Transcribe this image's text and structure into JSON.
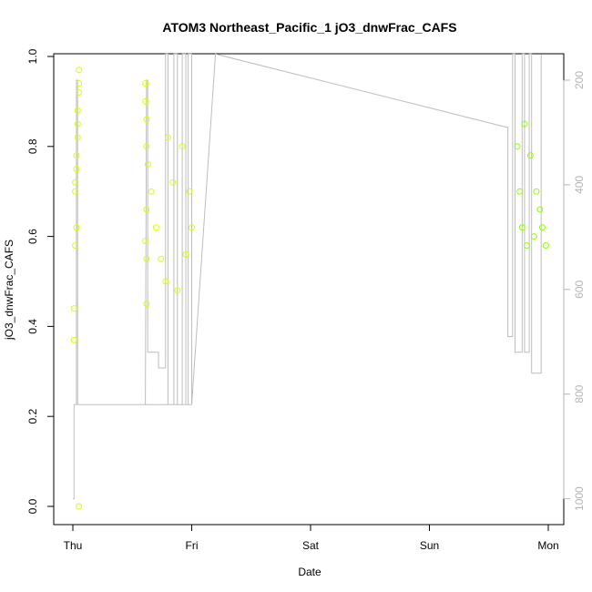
{
  "chart_data": {
    "type": "scatter",
    "title": "ATOM3 Northeast_Pacific_1 jO3_dnwFrac_CAFS",
    "xlabel": "Date",
    "ylabel": "jO3_dnwFrac_CAFS",
    "x_ticks": [
      "Thu",
      "Fri",
      "Sat",
      "Sun",
      "Mon"
    ],
    "ylim": [
      0,
      1
    ],
    "y_ticks": [
      "0.0",
      "0.2",
      "0.4",
      "0.6",
      "0.8",
      "1.0"
    ],
    "y2_ticks": [
      "200",
      "400",
      "600",
      "800",
      "1000"
    ],
    "y2_range_inverted": [
      1100,
      150
    ],
    "grid": false,
    "colors": {
      "early_points": "#d9ff00",
      "late_points": "#8cff00",
      "altitude_line": "#bdbdbd",
      "axis": "#000000",
      "right_axis": "#b4b4b4"
    },
    "point_series": [
      {
        "x_day": 0.02,
        "y": 0.7
      },
      {
        "x_day": 0.02,
        "y": 0.72
      },
      {
        "x_day": 0.03,
        "y": 0.75
      },
      {
        "x_day": 0.03,
        "y": 0.78
      },
      {
        "x_day": 0.04,
        "y": 0.82
      },
      {
        "x_day": 0.04,
        "y": 0.85
      },
      {
        "x_day": 0.04,
        "y": 0.88
      },
      {
        "x_day": 0.05,
        "y": 0.92
      },
      {
        "x_day": 0.05,
        "y": 0.94
      },
      {
        "x_day": 0.05,
        "y": 0.97
      },
      {
        "x_day": 0.03,
        "y": 0.62
      },
      {
        "x_day": 0.02,
        "y": 0.58
      },
      {
        "x_day": 0.01,
        "y": 0.44
      },
      {
        "x_day": 0.01,
        "y": 0.37
      },
      {
        "x_day": 0.05,
        "y": 0.0
      },
      {
        "x_day": 0.61,
        "y": 0.94
      },
      {
        "x_day": 0.61,
        "y": 0.9
      },
      {
        "x_day": 0.62,
        "y": 0.86
      },
      {
        "x_day": 0.62,
        "y": 0.8
      },
      {
        "x_day": 0.63,
        "y": 0.76
      },
      {
        "x_day": 0.62,
        "y": 0.66
      },
      {
        "x_day": 0.61,
        "y": 0.59
      },
      {
        "x_day": 0.62,
        "y": 0.55
      },
      {
        "x_day": 0.62,
        "y": 0.45
      },
      {
        "x_day": 0.66,
        "y": 0.7
      },
      {
        "x_day": 0.7,
        "y": 0.62
      },
      {
        "x_day": 0.74,
        "y": 0.55
      },
      {
        "x_day": 0.78,
        "y": 0.5
      },
      {
        "x_day": 0.8,
        "y": 0.82
      },
      {
        "x_day": 0.84,
        "y": 0.72
      },
      {
        "x_day": 0.88,
        "y": 0.48
      },
      {
        "x_day": 0.92,
        "y": 0.8
      },
      {
        "x_day": 0.95,
        "y": 0.56
      },
      {
        "x_day": 0.98,
        "y": 0.7
      },
      {
        "x_day": 1.0,
        "y": 0.62
      },
      {
        "x_day": 3.74,
        "y": 0.8
      },
      {
        "x_day": 3.76,
        "y": 0.7
      },
      {
        "x_day": 3.78,
        "y": 0.62
      },
      {
        "x_day": 3.8,
        "y": 0.85
      },
      {
        "x_day": 3.82,
        "y": 0.58
      },
      {
        "x_day": 3.85,
        "y": 0.78
      },
      {
        "x_day": 3.88,
        "y": 0.6
      },
      {
        "x_day": 3.9,
        "y": 0.7
      },
      {
        "x_day": 3.93,
        "y": 0.66
      },
      {
        "x_day": 3.95,
        "y": 0.62
      },
      {
        "x_day": 3.98,
        "y": 0.58
      }
    ]
  }
}
